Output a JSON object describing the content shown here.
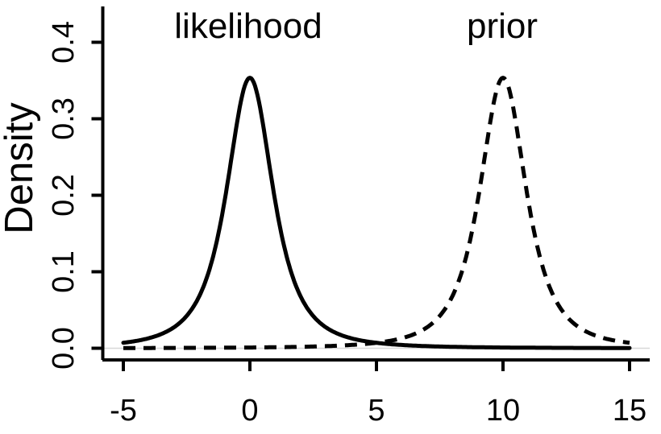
{
  "figure": {
    "background": "#ffffff",
    "ink_color": "#000000"
  },
  "chart_data": {
    "type": "line",
    "title": "",
    "xlabel": "",
    "ylabel": "Density",
    "xlim": [
      -5,
      15
    ],
    "ylim": [
      0,
      0.4
    ],
    "grid": false,
    "legend_position": "none",
    "x_ticks": [
      {
        "value": -5,
        "label": "-5"
      },
      {
        "value": 0,
        "label": "0"
      },
      {
        "value": 5,
        "label": "5"
      },
      {
        "value": 10,
        "label": "10"
      },
      {
        "value": 15,
        "label": "15"
      }
    ],
    "y_ticks": [
      {
        "value": 0.0,
        "label": "0.0"
      },
      {
        "value": 0.1,
        "label": "0.1"
      },
      {
        "value": 0.2,
        "label": "0.2"
      },
      {
        "value": 0.3,
        "label": "0.3"
      },
      {
        "value": 0.4,
        "label": "0.4"
      }
    ],
    "reference_line": {
      "y": 0,
      "color": "#d8d8d8"
    },
    "x": [
      -5,
      -4,
      -3,
      -2,
      -1,
      0,
      1,
      2,
      3,
      4,
      5,
      6,
      7,
      8,
      9,
      10,
      11,
      12,
      13,
      14,
      15
    ],
    "series": [
      {
        "name": "likelihood",
        "line_style": "solid",
        "color": "#000000",
        "distribution": {
          "family": "student_t",
          "df": 2,
          "location": 0,
          "scale": 1,
          "peak_density": 0.3536
        },
        "values": [
          0.00713,
          0.0131,
          0.02742,
          0.06804,
          0.19245,
          0.35355,
          0.19245,
          0.06804,
          0.02742,
          0.0131,
          0.00713,
          0.00427,
          0.00275,
          0.00187,
          0.00132,
          0.00097,
          0.00073,
          0.00057,
          0.00045,
          0.00036,
          0.00029
        ]
      },
      {
        "name": "prior",
        "line_style": "dashed",
        "color": "#000000",
        "distribution": {
          "family": "student_t",
          "df": 2,
          "location": 10,
          "scale": 1,
          "peak_density": 0.3536
        },
        "values": [
          0.00029,
          0.00036,
          0.00045,
          0.00057,
          0.00073,
          0.00097,
          0.00132,
          0.00187,
          0.00275,
          0.00427,
          0.00713,
          0.0131,
          0.02742,
          0.06804,
          0.19245,
          0.35355,
          0.19245,
          0.06804,
          0.02742,
          0.0131,
          0.00713
        ]
      }
    ],
    "annotations": [
      {
        "text": "likelihood",
        "x": 0,
        "y": 0.42
      },
      {
        "text": "prior",
        "x": 10,
        "y": 0.42
      }
    ]
  }
}
